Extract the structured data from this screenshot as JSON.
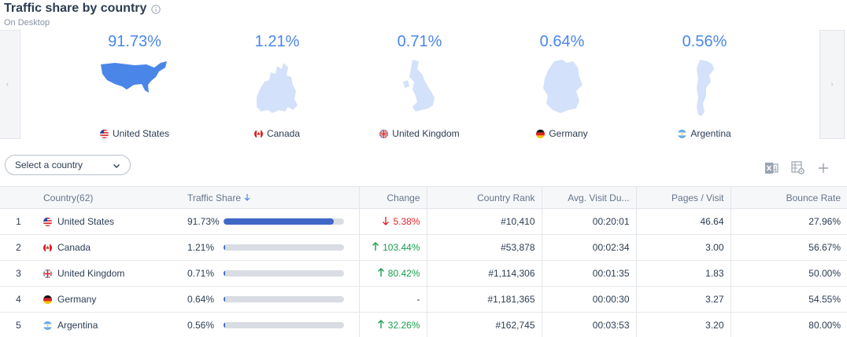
{
  "header": {
    "title": "Traffic share by country",
    "subtitle": "On Desktop"
  },
  "carousel": {
    "prev_icon": "chevron-left-icon",
    "next_icon": "chevron-right-icon",
    "cards": [
      {
        "share": "91.73%",
        "country": "United States",
        "map_color": "#4a86e8"
      },
      {
        "share": "1.21%",
        "country": "Canada",
        "map_color": "#d3e1fa"
      },
      {
        "share": "0.71%",
        "country": "United Kingdom",
        "map_color": "#d3e1fa"
      },
      {
        "share": "0.64%",
        "country": "Germany",
        "map_color": "#d3e1fa"
      },
      {
        "share": "0.56%",
        "country": "Argentina",
        "map_color": "#d3e1fa"
      }
    ]
  },
  "controls": {
    "select_label": "Select a country",
    "tools": [
      "excel-export-icon",
      "table-settings-icon",
      "add-icon"
    ]
  },
  "table": {
    "headers": {
      "country": "Country",
      "country_count": "(62)",
      "traffic_share": "Traffic Share",
      "change": "Change",
      "rank": "Country Rank",
      "avg_visit": "Avg. Visit Du...",
      "pages": "Pages / Visit",
      "bounce": "Bounce Rate"
    },
    "rows": [
      {
        "idx": "1",
        "country": "United States",
        "share": "91.73%",
        "share_value": 91.73,
        "change": "5.38%",
        "direction": "down",
        "rank": "#10,410",
        "avg_visit": "00:20:01",
        "pages": "46.64",
        "bounce": "27.96%"
      },
      {
        "idx": "2",
        "country": "Canada",
        "share": "1.21%",
        "share_value": 1.21,
        "change": "103.44%",
        "direction": "up",
        "rank": "#53,878",
        "avg_visit": "00:02:34",
        "pages": "3.00",
        "bounce": "56.67%"
      },
      {
        "idx": "3",
        "country": "United Kingdom",
        "share": "0.71%",
        "share_value": 0.71,
        "change": "80.42%",
        "direction": "up",
        "rank": "#1,114,306",
        "avg_visit": "00:01:35",
        "pages": "1.83",
        "bounce": "50.00%"
      },
      {
        "idx": "4",
        "country": "Germany",
        "share": "0.64%",
        "share_value": 0.64,
        "change": "-",
        "direction": "none",
        "rank": "#1,181,365",
        "avg_visit": "00:00:30",
        "pages": "3.27",
        "bounce": "54.55%"
      },
      {
        "idx": "5",
        "country": "Argentina",
        "share": "0.56%",
        "share_value": 0.56,
        "change": "32.26%",
        "direction": "up",
        "rank": "#162,745",
        "avg_visit": "00:03:53",
        "pages": "3.20",
        "bounce": "80.00%"
      }
    ]
  },
  "colors": {
    "accent": "#4a86e8",
    "bar_fill": "#3f68c7",
    "bar_track": "#d9dde3",
    "up": "#18a04c",
    "down": "#e3242b"
  }
}
